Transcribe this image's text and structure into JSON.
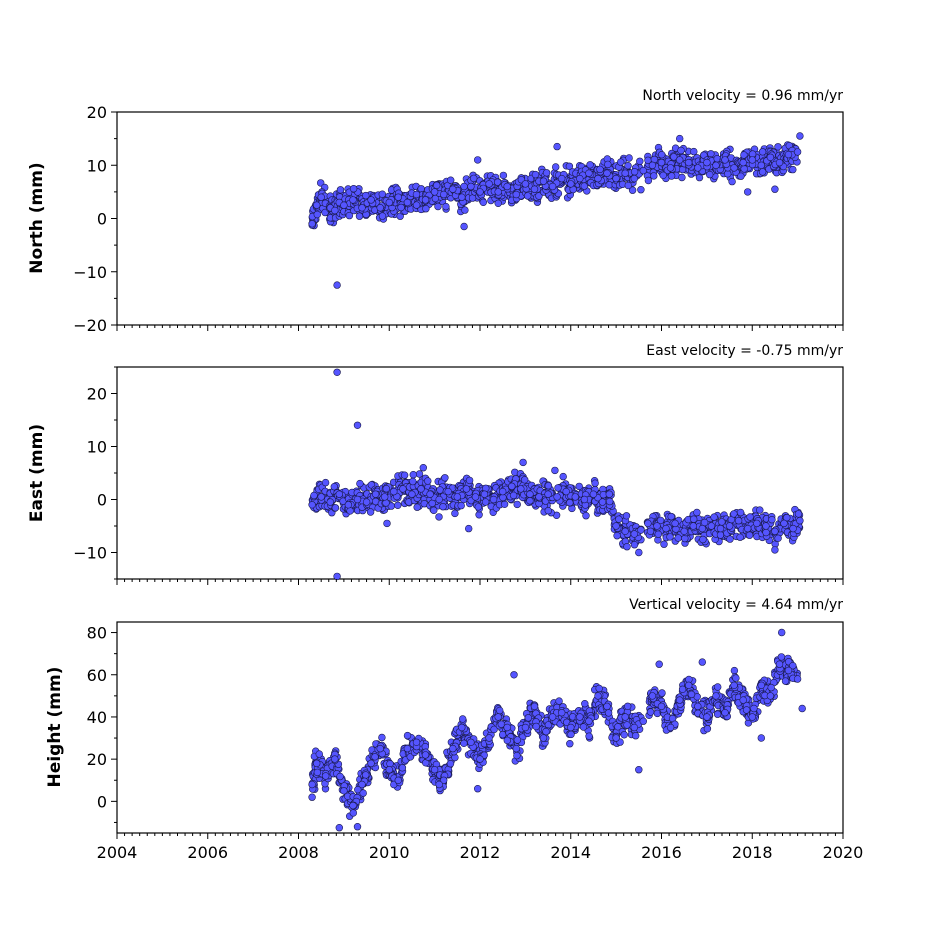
{
  "chart_data": [
    {
      "type": "scatter",
      "title": "North velocity = 0.96 mm/yr",
      "xlabel": "",
      "ylabel": "North (mm)",
      "xlim": [
        2004,
        2020
      ],
      "ylim": [
        -20,
        20
      ],
      "xticks": [
        2004,
        2006,
        2008,
        2010,
        2012,
        2014,
        2016,
        2018,
        2020
      ],
      "yticks": [
        -20,
        -10,
        0,
        10,
        20
      ],
      "ytick_labels": [
        "−20",
        "−10",
        "0",
        "10",
        "20"
      ],
      "grid": false,
      "color": "#5555ff",
      "series": [
        {
          "x": [
            2008.3,
            2008.4,
            2008.5,
            2008.7,
            2008.8,
            2008.9,
            2009.0,
            2009.2,
            2009.4,
            2009.6,
            2009.8,
            2010.0,
            2010.2,
            2010.4,
            2010.6,
            2010.8,
            2011.0,
            2011.2,
            2011.4,
            2011.6,
            2011.8,
            2012.0,
            2012.2,
            2012.4,
            2012.6,
            2012.8,
            2013.0,
            2013.2,
            2013.4,
            2013.6,
            2013.8,
            2014.0,
            2014.2,
            2014.4,
            2014.6,
            2014.8,
            2015.0,
            2015.2,
            2015.4,
            2015.6,
            2015.8,
            2016.0,
            2016.2,
            2016.4,
            2016.6,
            2016.8,
            2017.0,
            2017.2,
            2017.4,
            2017.6,
            2017.8,
            2018.0,
            2018.2,
            2018.4,
            2018.6,
            2018.8,
            2019.0
          ],
          "y": [
            -1.0,
            2.5,
            4.0,
            2.0,
            1.5,
            3.0,
            2.5,
            3.5,
            2.0,
            3.5,
            2.0,
            3.0,
            4.0,
            3.0,
            4.5,
            3.5,
            5.0,
            4.5,
            5.5,
            4.0,
            6.0,
            5.0,
            6.5,
            5.0,
            6.0,
            4.5,
            6.5,
            5.5,
            7.0,
            6.0,
            7.5,
            6.5,
            7.5,
            8.5,
            7.5,
            8.5,
            7.5,
            8.5,
            7.5,
            9.0,
            10.0,
            10.5,
            9.5,
            11.0,
            10.5,
            9.5,
            10.5,
            10.0,
            11.0,
            9.5,
            10.5,
            11.0,
            10.0,
            11.5,
            10.5,
            12.0,
            12.5
          ]
        },
        {
          "x": [
            2008.85,
            2011.65,
            2011.95,
            2013.7,
            2016.4,
            2017.9,
            2018.5,
            2019.05
          ],
          "y": [
            -12.5,
            -1.5,
            11.0,
            13.5,
            15.0,
            5.0,
            5.5,
            15.5
          ]
        }
      ]
    },
    {
      "type": "scatter",
      "title": "East velocity = -0.75 mm/yr",
      "xlabel": "",
      "ylabel": "East (mm)",
      "xlim": [
        2004,
        2020
      ],
      "ylim": [
        -15,
        25
      ],
      "xticks": [
        2004,
        2006,
        2008,
        2010,
        2012,
        2014,
        2016,
        2018,
        2020
      ],
      "yticks": [
        -10,
        0,
        10,
        20
      ],
      "ytick_labels": [
        "−10",
        "0",
        "10",
        "20"
      ],
      "grid": false,
      "color": "#5555ff",
      "series": [
        {
          "x": [
            2008.3,
            2008.5,
            2008.7,
            2008.9,
            2009.1,
            2009.3,
            2009.5,
            2009.7,
            2009.9,
            2010.1,
            2010.3,
            2010.5,
            2010.7,
            2010.9,
            2011.1,
            2011.3,
            2011.5,
            2011.7,
            2011.9,
            2012.1,
            2012.3,
            2012.5,
            2012.7,
            2012.9,
            2013.1,
            2013.3,
            2013.5,
            2013.7,
            2013.9,
            2014.1,
            2014.3,
            2014.5,
            2014.7,
            2014.85,
            2015.0,
            2015.2,
            2015.4,
            2015.7,
            2015.9,
            2016.1,
            2016.3,
            2016.5,
            2016.7,
            2016.9,
            2017.1,
            2017.3,
            2017.5,
            2017.7,
            2017.9,
            2018.1,
            2018.3,
            2018.5,
            2018.7,
            2018.9,
            2019.05
          ],
          "y": [
            -1.0,
            0.5,
            -0.5,
            1.0,
            -1.0,
            0.0,
            -0.5,
            1.0,
            0.5,
            1.5,
            2.0,
            1.0,
            2.0,
            1.0,
            0.0,
            1.5,
            0.5,
            2.0,
            0.5,
            1.0,
            0.0,
            1.5,
            2.5,
            2.0,
            1.0,
            0.5,
            1.0,
            0.5,
            1.5,
            0.5,
            0.0,
            1.0,
            -0.5,
            1.0,
            -5.0,
            -6.0,
            -6.5,
            -4.5,
            -5.0,
            -5.5,
            -4.5,
            -6.0,
            -5.0,
            -5.5,
            -5.0,
            -5.5,
            -5.0,
            -4.0,
            -5.5,
            -4.5,
            -5.0,
            -6.0,
            -4.5,
            -5.5,
            -4.0
          ]
        },
        {
          "x": [
            2008.85,
            2008.85,
            2009.3,
            2009.95,
            2010.75,
            2011.75,
            2012.95,
            2013.65,
            2015.5,
            2018.5
          ],
          "y": [
            24.0,
            -14.5,
            14.0,
            -4.5,
            6.0,
            -5.5,
            7.0,
            5.5,
            -10.0,
            -9.5
          ]
        }
      ]
    },
    {
      "type": "scatter",
      "title": "Vertical velocity = 4.64 mm/yr",
      "xlabel": "",
      "ylabel": "Height (mm)",
      "xlim": [
        2004,
        2020
      ],
      "ylim": [
        -15,
        85
      ],
      "xticks": [
        2004,
        2006,
        2008,
        2010,
        2012,
        2014,
        2016,
        2018,
        2020
      ],
      "xtick_labels": [
        "2004",
        "2006",
        "2008",
        "2010",
        "2012",
        "2014",
        "2016",
        "2018",
        "2020"
      ],
      "yticks": [
        0,
        20,
        40,
        60,
        80
      ],
      "ytick_labels": [
        "0",
        "20",
        "40",
        "60",
        "80"
      ],
      "grid": false,
      "color": "#5555ff",
      "series": [
        {
          "x": [
            2008.3,
            2008.4,
            2008.6,
            2008.8,
            2009.0,
            2009.2,
            2009.4,
            2009.6,
            2009.8,
            2010.0,
            2010.2,
            2010.4,
            2010.6,
            2010.8,
            2011.0,
            2011.2,
            2011.4,
            2011.6,
            2011.8,
            2012.0,
            2012.2,
            2012.4,
            2012.6,
            2012.8,
            2013.0,
            2013.2,
            2013.4,
            2013.6,
            2013.8,
            2014.0,
            2014.2,
            2014.4,
            2014.6,
            2014.8,
            2015.0,
            2015.2,
            2015.4,
            2015.6,
            2015.8,
            2016.0,
            2016.2,
            2016.4,
            2016.6,
            2016.8,
            2017.0,
            2017.2,
            2017.4,
            2017.6,
            2017.8,
            2018.0,
            2018.2,
            2018.4,
            2018.6,
            2018.8,
            2019.0
          ],
          "y": [
            8,
            18,
            12,
            20,
            5,
            -2,
            8,
            18,
            25,
            15,
            10,
            25,
            28,
            22,
            15,
            10,
            25,
            35,
            28,
            20,
            30,
            40,
            35,
            25,
            35,
            45,
            30,
            40,
            42,
            35,
            40,
            38,
            50,
            45,
            30,
            40,
            35,
            38,
            50,
            45,
            35,
            48,
            55,
            45,
            40,
            50,
            42,
            55,
            48,
            40,
            55,
            50,
            65,
            62,
            58
          ]
        },
        {
          "x": [
            2008.9,
            2009.3,
            2011.1,
            2011.95,
            2012.75,
            2015.5,
            2015.95,
            2016.9,
            2018.2,
            2018.65,
            2019.1
          ],
          "y": [
            -12.5,
            -12,
            8,
            6,
            60,
            15,
            65,
            66,
            30,
            80,
            44
          ]
        }
      ]
    }
  ]
}
